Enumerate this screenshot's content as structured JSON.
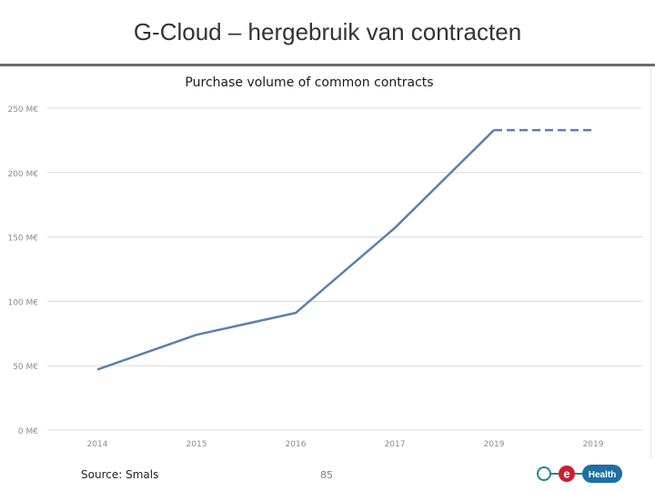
{
  "slide": {
    "title": "G-Cloud – hergebruik van contracten",
    "source": "Source: Smals",
    "page_number": "85",
    "logo_text": "Health",
    "logo_letter": "e"
  },
  "colors": {
    "line": "#5b80ab",
    "grid": "#d9d9d9",
    "tick_text": "#8c8c8c",
    "logo_green": "#1d8a7a",
    "logo_red": "#c8202f",
    "logo_blue": "#1e6fa6"
  },
  "chart_data": {
    "type": "line",
    "title": "Purchase volume of common contracts",
    "xlabel": "",
    "ylabel": "",
    "categories": [
      "2014",
      "2015",
      "2016",
      "2017",
      "2019",
      "2019"
    ],
    "ylim": [
      0,
      250
    ],
    "yticks": [
      0,
      50,
      100,
      150,
      200,
      250
    ],
    "ytick_labels": [
      "0 M€",
      "50 M€",
      "100 M€",
      "150 M€",
      "200 M€",
      "250 M€"
    ],
    "series": [
      {
        "values": [
          47,
          74,
          91,
          157,
          233,
          null
        ],
        "style": "solid"
      },
      {
        "values": [
          null,
          null,
          null,
          null,
          233,
          233
        ],
        "style": "dashed"
      }
    ],
    "grid": true,
    "legend": "none"
  }
}
